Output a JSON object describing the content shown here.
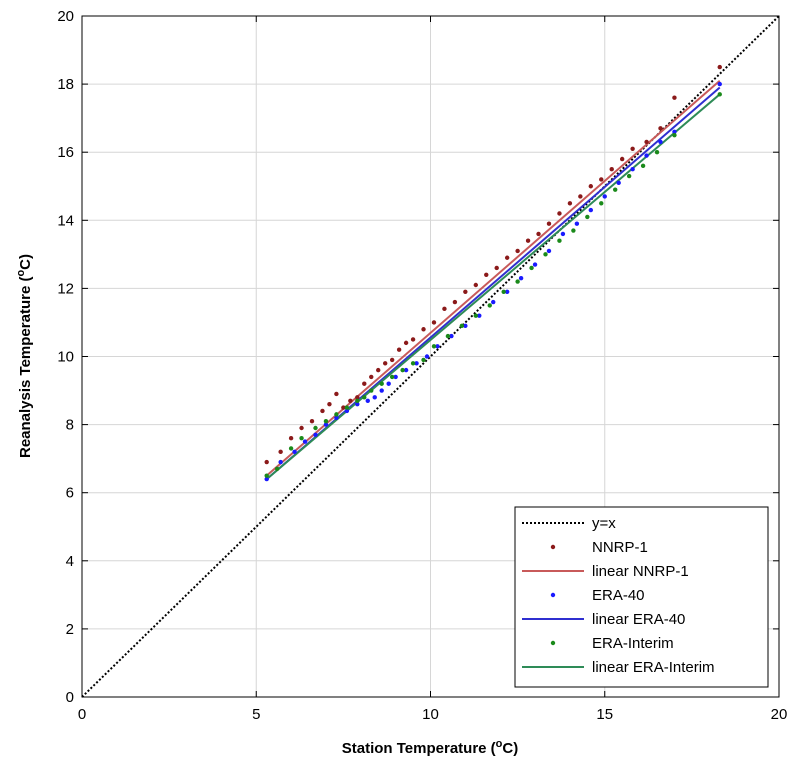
{
  "chart_data": {
    "type": "scatter",
    "xlabel": "Station Temperature (°C)",
    "ylabel": "Reanalysis Temperature (°C)",
    "xlim": [
      0,
      20
    ],
    "ylim": [
      0,
      20
    ],
    "x_ticks": [
      0,
      5,
      10,
      15,
      20
    ],
    "y_ticks": [
      0,
      2,
      4,
      6,
      8,
      10,
      12,
      14,
      16,
      18,
      20
    ],
    "grid": true,
    "legend_position": "bottom-right",
    "colors": {
      "identity": "#000000",
      "nnrp": "#8b1a1a",
      "nnrp_line": "#c85a5a",
      "era40": "#1a1aff",
      "era40_line": "#2f2fd0",
      "erai": "#1a8a1a",
      "erai_line": "#2e8b57"
    },
    "series": [
      {
        "name": "y=x",
        "kind": "line",
        "x": [
          0,
          20
        ],
        "y": [
          0,
          20
        ]
      },
      {
        "name": "NNRP-1",
        "kind": "points",
        "x": [
          5.3,
          5.7,
          6.0,
          6.3,
          6.6,
          6.9,
          7.1,
          7.3,
          7.5,
          7.7,
          7.9,
          8.1,
          8.3,
          8.5,
          8.7,
          8.9,
          9.1,
          9.3,
          9.5,
          9.8,
          10.1,
          10.4,
          10.7,
          11.0,
          11.3,
          11.6,
          11.9,
          12.2,
          12.5,
          12.8,
          13.1,
          13.4,
          13.7,
          14.0,
          14.3,
          14.6,
          14.9,
          15.2,
          15.5,
          15.8,
          16.2,
          16.6,
          17.0,
          18.3
        ],
        "y": [
          6.9,
          7.2,
          7.6,
          7.9,
          8.1,
          8.4,
          8.6,
          8.9,
          8.5,
          8.7,
          8.8,
          9.2,
          9.4,
          9.6,
          9.8,
          9.9,
          10.2,
          10.4,
          10.5,
          10.8,
          11.0,
          11.4,
          11.6,
          11.9,
          12.1,
          12.4,
          12.6,
          12.9,
          13.1,
          13.4,
          13.6,
          13.9,
          14.2,
          14.5,
          14.7,
          15.0,
          15.2,
          15.5,
          15.8,
          16.1,
          16.3,
          16.7,
          17.6,
          18.5
        ]
      },
      {
        "name": "linear NNRP-1",
        "kind": "line",
        "x": [
          5.3,
          18.3
        ],
        "y": [
          6.5,
          18.1
        ]
      },
      {
        "name": "ERA-40",
        "kind": "points",
        "x": [
          5.3,
          5.7,
          6.1,
          6.4,
          6.7,
          7.0,
          7.3,
          7.6,
          7.9,
          8.2,
          8.4,
          8.6,
          8.8,
          9.0,
          9.3,
          9.6,
          9.9,
          10.2,
          10.6,
          11.0,
          11.4,
          11.8,
          12.2,
          12.6,
          13.0,
          13.4,
          13.8,
          14.2,
          14.6,
          15.0,
          15.4,
          15.8,
          16.2,
          16.6,
          17.0,
          18.3
        ],
        "y": [
          6.4,
          6.9,
          7.2,
          7.5,
          7.7,
          8.0,
          8.2,
          8.4,
          8.6,
          8.7,
          8.8,
          9.0,
          9.2,
          9.4,
          9.6,
          9.8,
          10.0,
          10.3,
          10.6,
          10.9,
          11.2,
          11.6,
          11.9,
          12.3,
          12.7,
          13.1,
          13.6,
          13.9,
          14.3,
          14.7,
          15.1,
          15.5,
          15.9,
          16.3,
          16.6,
          18.0
        ]
      },
      {
        "name": "linear ERA-40",
        "kind": "line",
        "x": [
          5.3,
          18.3
        ],
        "y": [
          6.4,
          17.9
        ]
      },
      {
        "name": "ERA-Interim",
        "kind": "points",
        "x": [
          5.3,
          5.6,
          6.0,
          6.3,
          6.7,
          7.0,
          7.3,
          7.6,
          7.9,
          8.1,
          8.3,
          8.6,
          8.9,
          9.2,
          9.5,
          9.8,
          10.1,
          10.5,
          10.9,
          11.3,
          11.7,
          12.1,
          12.5,
          12.9,
          13.3,
          13.7,
          14.1,
          14.5,
          14.9,
          15.3,
          15.7,
          16.1,
          16.5,
          17.0,
          18.3
        ],
        "y": [
          6.5,
          6.7,
          7.3,
          7.6,
          7.9,
          8.1,
          8.3,
          8.5,
          8.7,
          8.8,
          9.0,
          9.2,
          9.4,
          9.6,
          9.8,
          9.9,
          10.3,
          10.6,
          10.9,
          11.2,
          11.5,
          11.9,
          12.2,
          12.6,
          13.0,
          13.4,
          13.7,
          14.1,
          14.5,
          14.9,
          15.3,
          15.6,
          16.0,
          16.5,
          17.7
        ]
      },
      {
        "name": "linear ERA-Interim",
        "kind": "line",
        "x": [
          5.3,
          18.3
        ],
        "y": [
          6.4,
          17.7
        ]
      }
    ]
  }
}
